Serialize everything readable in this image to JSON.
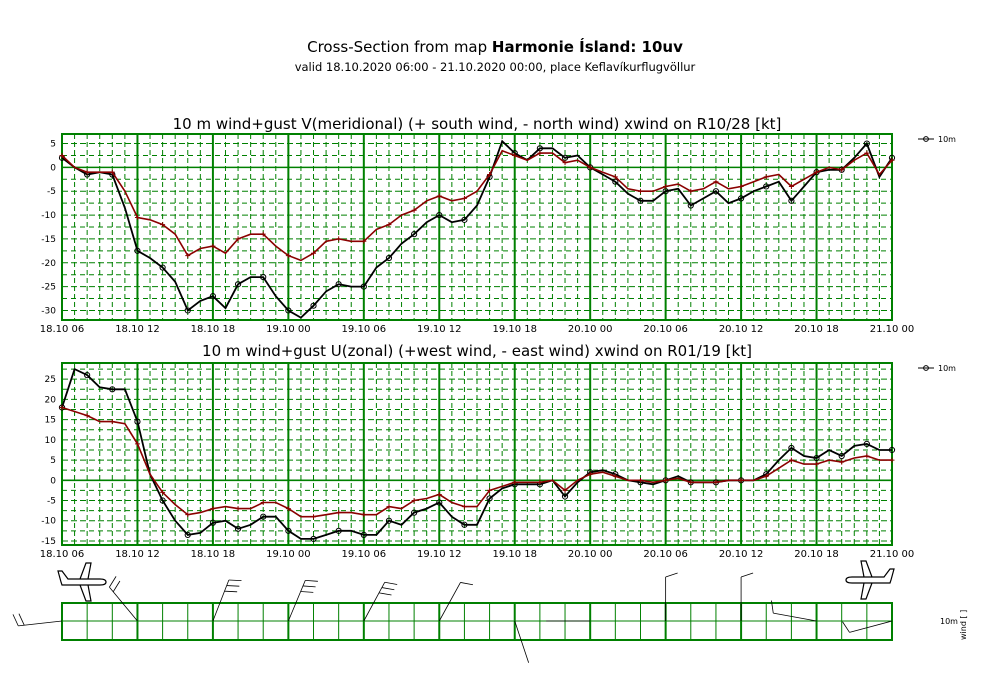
{
  "header": {
    "title_prefix": "Cross-Section from map ",
    "title_bold": "Harmonie Ísland: 10uv",
    "subtitle": "valid 18.10.2020 06:00 - 21.10.2020 00:00, place Keflavíkurflugvöllur"
  },
  "colors": {
    "wind": "#000000",
    "gust": "#8b0000",
    "grid": "#008000"
  },
  "chart_data": [
    {
      "type": "line",
      "title": "10 m wind+gust V(meridional) (+ south wind, - north wind) xwind on R10/28 [kt]",
      "x_ticks": [
        "18.10 06",
        "18.10 12",
        "18.10 18",
        "19.10 00",
        "19.10 06",
        "19.10 12",
        "19.10 18",
        "20.10 00",
        "20.10 06",
        "20.10 12",
        "20.10 18",
        "21.10 00"
      ],
      "ylim": [
        -32,
        7
      ],
      "y_ticks": [
        5,
        0,
        -5,
        -10,
        -15,
        -20,
        -25,
        -30
      ],
      "legend": "10m",
      "series": [
        {
          "name": "10m",
          "role": "wind",
          "values": [
            2,
            0,
            -1.5,
            -1,
            -1.5,
            -8.5,
            -17.5,
            -19,
            -21,
            -24,
            -30,
            -28,
            -27,
            -29.5,
            -24.5,
            -23,
            -23,
            -27,
            -30,
            -31.5,
            -29,
            -26,
            -24.5,
            -25,
            -25,
            -21,
            -19,
            -16,
            -14,
            -11.5,
            -10,
            -11.5,
            -11,
            -8,
            -2,
            5.5,
            3,
            1.5,
            4,
            4,
            2,
            2.5,
            0,
            -1.5,
            -3,
            -5.5,
            -7,
            -7,
            -5,
            -4.5,
            -8,
            -6.5,
            -5,
            -7.5,
            -6.5,
            -5,
            -4,
            -3,
            -7,
            -4,
            -1,
            -0.5,
            -0.5,
            2,
            5,
            -2,
            2
          ]
        },
        {
          "name": "gust",
          "role": "gust",
          "values": [
            2.5,
            0,
            -1,
            -1,
            -1,
            -5,
            -10.5,
            -11,
            -12,
            -14,
            -18.5,
            -17,
            -16.5,
            -18,
            -15,
            -14,
            -14,
            -16.5,
            -18.5,
            -19.5,
            -18,
            -15.5,
            -15,
            -15.5,
            -15.5,
            -13,
            -12,
            -10,
            -9,
            -7,
            -6,
            -7,
            -6.5,
            -5,
            -1.5,
            3.5,
            2.5,
            1.5,
            3,
            3,
            1,
            1.5,
            0,
            -1,
            -2,
            -4.5,
            -5,
            -5,
            -4,
            -3.5,
            -5,
            -4.5,
            -3,
            -4.5,
            -4,
            -3,
            -2,
            -1.5,
            -4,
            -2.5,
            -1,
            0,
            -0.5,
            1.5,
            3,
            -1.5,
            1.5
          ]
        }
      ]
    },
    {
      "type": "line",
      "title": "10 m wind+gust U(zonal) (+west wind, - east wind) xwind on R01/19 [kt]",
      "x_ticks": [
        "18.10 06",
        "18.10 12",
        "18.10 18",
        "19.10 00",
        "19.10 06",
        "19.10 12",
        "19.10 18",
        "20.10 00",
        "20.10 06",
        "20.10 12",
        "20.10 18",
        "21.10 00"
      ],
      "ylim": [
        -16,
        29
      ],
      "y_ticks": [
        25,
        20,
        15,
        10,
        5,
        0,
        -5,
        -10,
        -15
      ],
      "legend": "10m",
      "series": [
        {
          "name": "10m",
          "role": "wind",
          "values": [
            18,
            27.5,
            26,
            23,
            22.5,
            22.5,
            14.5,
            1.5,
            -5,
            -10,
            -13.5,
            -13,
            -10.5,
            -10,
            -12,
            -11,
            -9,
            -9,
            -12.5,
            -14.5,
            -14.5,
            -13.5,
            -12.5,
            -12.5,
            -13.5,
            -13.5,
            -10,
            -11,
            -8,
            -7,
            -5.5,
            -9,
            -11,
            -11,
            -4.5,
            -2,
            -1,
            -1,
            -1,
            0,
            -4,
            -0.5,
            2,
            2.5,
            1.5,
            0,
            -0.5,
            -1,
            0,
            1,
            -0.5,
            -0.5,
            -0.5,
            0,
            0,
            0,
            1.5,
            5,
            8,
            6,
            5.5,
            7.5,
            6,
            8.5,
            9,
            7.5,
            7.5
          ]
        },
        {
          "name": "gust",
          "role": "gust",
          "values": [
            18,
            17,
            16,
            14.5,
            14.5,
            14,
            9,
            1.5,
            -3,
            -6,
            -8.5,
            -8,
            -7,
            -6.5,
            -7,
            -7,
            -5.5,
            -5.5,
            -7,
            -9,
            -9,
            -8.5,
            -8,
            -8,
            -8.5,
            -8.5,
            -6.5,
            -7,
            -5,
            -4.5,
            -3.5,
            -5.5,
            -6.5,
            -6.5,
            -2.5,
            -1.5,
            -0.5,
            -0.5,
            -0.5,
            0,
            -2.5,
            0,
            1.5,
            2,
            1,
            0,
            0,
            -0.5,
            0,
            0.5,
            -0.5,
            -0.5,
            -0.5,
            0,
            0,
            0,
            1,
            3,
            5,
            4,
            4,
            5,
            4.5,
            5.5,
            6,
            5,
            5
          ]
        }
      ]
    }
  ],
  "barbs": {
    "level_label": "10m",
    "axis_label": "wind [ ]"
  }
}
